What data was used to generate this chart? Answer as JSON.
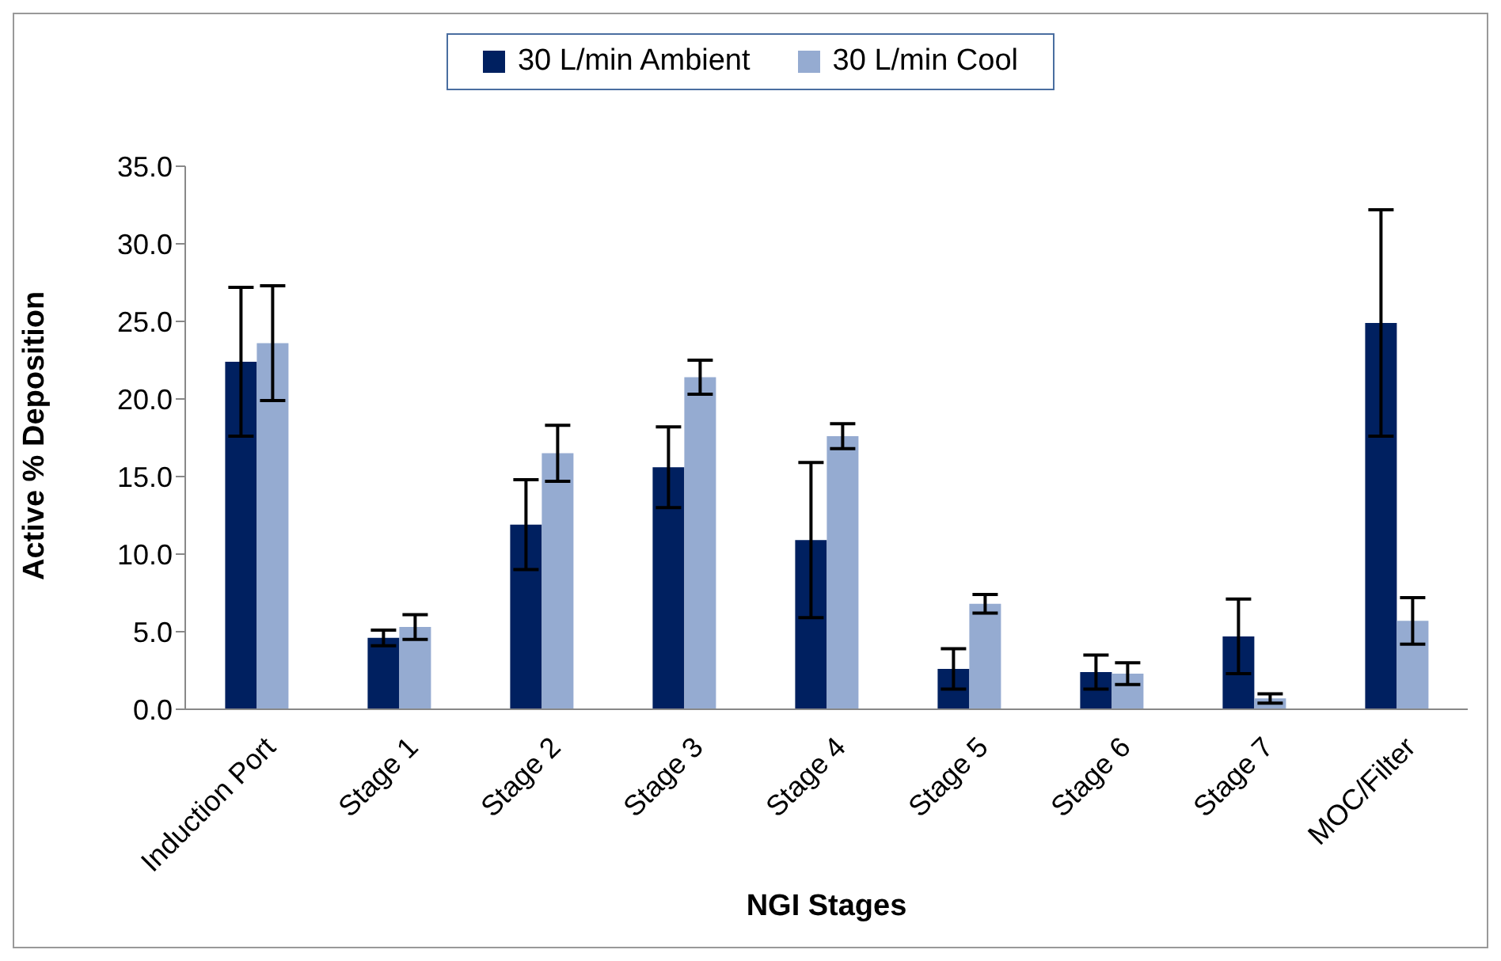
{
  "chart_data": {
    "type": "bar",
    "xlabel": "NGI Stages",
    "ylabel": "Active % Deposition",
    "categories": [
      "Induction Port",
      "Stage 1",
      "Stage 2",
      "Stage 3",
      "Stage 4",
      "Stage 5",
      "Stage 6",
      "Stage 7",
      "MOC/Filter"
    ],
    "series": [
      {
        "name": "30 L/min Ambient",
        "color": "#002060",
        "values": [
          22.4,
          4.6,
          11.9,
          15.6,
          10.9,
          2.6,
          2.4,
          4.7,
          24.9
        ],
        "errors": [
          4.8,
          0.5,
          2.9,
          2.6,
          5.0,
          1.3,
          1.1,
          2.4,
          7.3
        ]
      },
      {
        "name": "30 L/min Cool",
        "color": "#95abd1",
        "values": [
          23.6,
          5.3,
          16.5,
          21.4,
          17.6,
          6.8,
          2.3,
          0.7,
          5.7
        ],
        "errors": [
          3.7,
          0.8,
          1.8,
          1.1,
          0.8,
          0.6,
          0.7,
          0.3,
          1.5
        ]
      }
    ],
    "ylim": [
      0,
      35
    ],
    "yticks": [
      {
        "value": 0,
        "label": "0.0"
      },
      {
        "value": 5,
        "label": "5.0"
      },
      {
        "value": 10,
        "label": "10.0"
      },
      {
        "value": 15,
        "label": "15.0"
      },
      {
        "value": 20,
        "label": "20.0"
      },
      {
        "value": 25,
        "label": "25.0"
      },
      {
        "value": 30,
        "label": "30.0"
      },
      {
        "value": 35,
        "label": "35.0"
      }
    ],
    "grid": false,
    "legend": "top"
  }
}
